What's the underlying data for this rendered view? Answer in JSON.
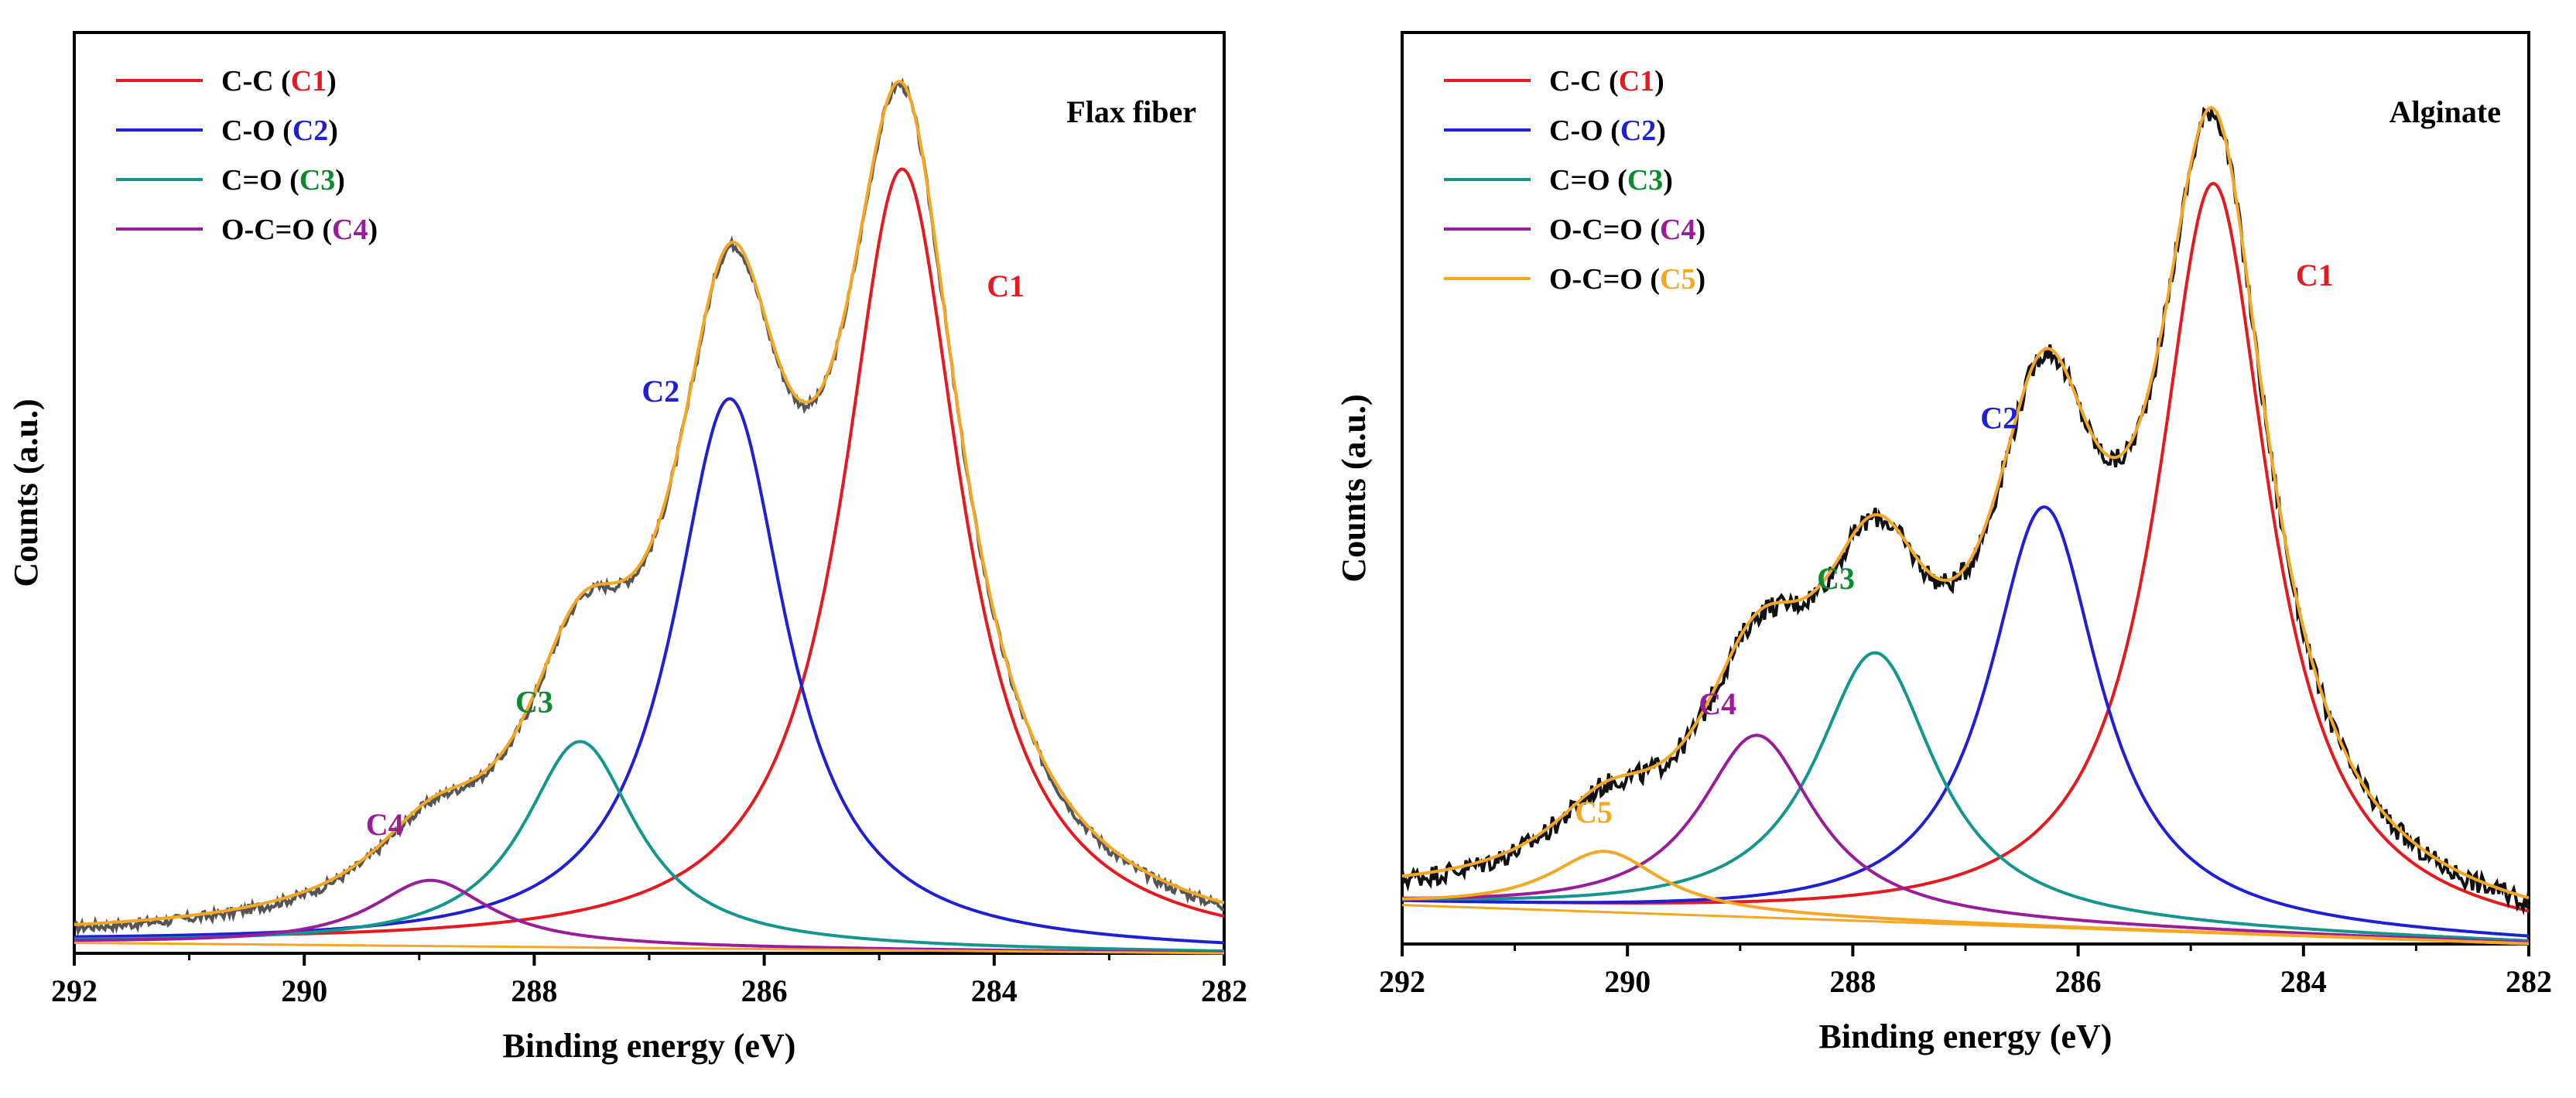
{
  "chart_data": [
    {
      "type": "line",
      "title": "Flax fiber",
      "xlabel": "Binding energy (eV)",
      "ylabel": "Counts (a.u.)",
      "xlim": [
        292,
        282
      ],
      "ylim": [
        0,
        1
      ],
      "x_ticks": [
        292,
        290,
        288,
        286,
        284,
        282
      ],
      "x_tick_labels": [
        "292",
        "290",
        "288",
        "286",
        "284",
        "282"
      ],
      "legend_location": "top-left",
      "components": [
        {
          "id": "C1",
          "name": "C-C",
          "color": "#e8191e",
          "center": 284.8,
          "height": 0.892,
          "fwhm": 1.25
        },
        {
          "id": "C2",
          "name": "C-O",
          "color": "#1f1fd6",
          "center": 286.3,
          "height": 0.628,
          "fwhm": 1.2
        },
        {
          "id": "C3",
          "name": "C=O",
          "color": "#12968e",
          "center": 287.6,
          "height": 0.235,
          "fwhm": 1.2
        },
        {
          "id": "C4",
          "name": "O-C=O",
          "color": "#9b1c9b",
          "center": 288.9,
          "height": 0.075,
          "fwhm": 1.25
        }
      ],
      "background": {
        "x": [
          292,
          282
        ],
        "y": [
          0.012,
          0.0
        ]
      },
      "series": [
        {
          "name": "Raw data",
          "color": "#555555",
          "width": 4
        },
        {
          "name": "Envelope",
          "color": "#f5a623",
          "width": 4
        }
      ],
      "legend": [
        {
          "formula": "C-C",
          "open": " (",
          "peak": "C1",
          "close": ")",
          "line_color": "#e8191e",
          "peak_color": "#e8191e"
        },
        {
          "formula": "C-O",
          "open": " (",
          "peak": "C2",
          "close": ")",
          "line_color": "#1f1fd6",
          "peak_color": "#1f1fd6"
        },
        {
          "formula": "C=O",
          "open": " (",
          "peak": "C3",
          "close": ")",
          "line_color": "#12968e",
          "peak_color": "#0e8a2e"
        },
        {
          "formula": "O-C=O",
          "open": " (",
          "peak": "C4",
          "close": ")",
          "line_color": "#9b1c9b",
          "peak_color": "#9b1c9b"
        }
      ],
      "annotations": [
        {
          "text": "C1",
          "x": 283.9,
          "y": 0.75,
          "color": "#e8191e"
        },
        {
          "text": "C2",
          "x": 286.9,
          "y": 0.63,
          "color": "#1f1fd6"
        },
        {
          "text": "C3",
          "x": 288.0,
          "y": 0.275,
          "color": "#0e8a2e"
        },
        {
          "text": "C4",
          "x": 289.3,
          "y": 0.135,
          "color": "#9b1c9b"
        }
      ]
    },
    {
      "type": "line",
      "title": "Alginate",
      "xlabel": "Binding energy (eV)",
      "ylabel": "Counts (a.u.)",
      "xlim": [
        292,
        282
      ],
      "ylim": [
        0,
        1
      ],
      "x_ticks": [
        292,
        290,
        288,
        286,
        284,
        282
      ],
      "x_tick_labels": [
        "292",
        "290",
        "288",
        "286",
        "284",
        "282"
      ],
      "legend_location": "top-left",
      "components": [
        {
          "id": "C1",
          "name": "C-C",
          "color": "#e8191e",
          "center": 284.8,
          "height": 0.865,
          "fwhm": 1.2
        },
        {
          "id": "C2",
          "name": "C-O",
          "color": "#1f1fd6",
          "center": 286.3,
          "height": 0.485,
          "fwhm": 1.2
        },
        {
          "id": "C3",
          "name": "C=O",
          "color": "#12968e",
          "center": 287.8,
          "height": 0.31,
          "fwhm": 1.3
        },
        {
          "id": "C4",
          "name": "O-C=O",
          "color": "#9b1c9b",
          "center": 288.85,
          "height": 0.21,
          "fwhm": 1.25
        },
        {
          "id": "C5",
          "name": "O-C=O",
          "color": "#f5a623",
          "center": 290.2,
          "height": 0.07,
          "fwhm": 1.2
        }
      ],
      "background": {
        "x": [
          292,
          282
        ],
        "y": [
          0.045,
          0.0
        ]
      },
      "series": [
        {
          "name": "Raw data",
          "color": "#111111",
          "width": 4
        },
        {
          "name": "Envelope",
          "color": "#f5a623",
          "width": 4
        }
      ],
      "legend": [
        {
          "formula": "C-C",
          "open": " (",
          "peak": "C1",
          "close": ")",
          "line_color": "#e8191e",
          "peak_color": "#e8191e"
        },
        {
          "formula": "C-O",
          "open": " (",
          "peak": "C2",
          "close": ")",
          "line_color": "#1f1fd6",
          "peak_color": "#1f1fd6"
        },
        {
          "formula": "C=O",
          "open": " (",
          "peak": "C3",
          "close": ")",
          "line_color": "#12968e",
          "peak_color": "#0e8a2e"
        },
        {
          "formula": "O-C=O",
          "open": " (",
          "peak": "C4",
          "close": ")",
          "line_color": "#9b1c9b",
          "peak_color": "#9b1c9b"
        },
        {
          "formula": "O-C=O",
          "open": " (",
          "peak": "C5",
          "close": ")",
          "line_color": "#f5a623",
          "peak_color": "#f5a623"
        }
      ],
      "annotations": [
        {
          "text": "C1",
          "x": 283.9,
          "y": 0.76,
          "color": "#e8191e"
        },
        {
          "text": "C2",
          "x": 286.7,
          "y": 0.595,
          "color": "#1f1fd6"
        },
        {
          "text": "C3",
          "x": 288.15,
          "y": 0.41,
          "color": "#0e8a2e"
        },
        {
          "text": "C4",
          "x": 289.2,
          "y": 0.265,
          "color": "#9b1c9b"
        },
        {
          "text": "C5",
          "x": 290.3,
          "y": 0.14,
          "color": "#f5a623"
        }
      ]
    }
  ]
}
